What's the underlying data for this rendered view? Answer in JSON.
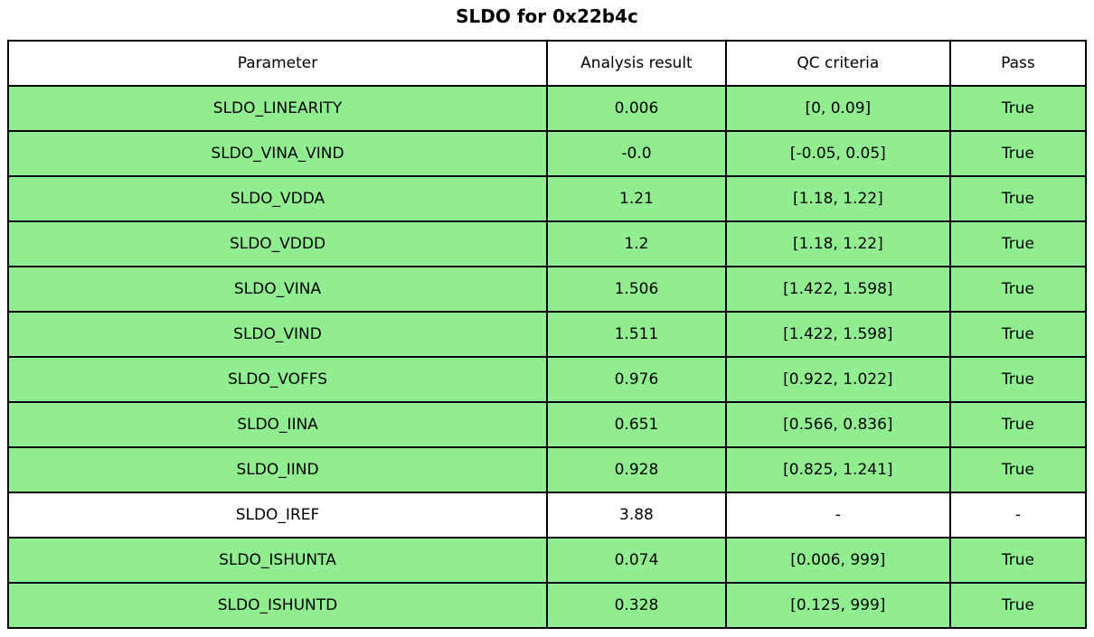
{
  "colors": {
    "pass_row_bg": "#90ee90",
    "neutral_row_bg": "#ffffff",
    "border": "#000000",
    "text": "#000000",
    "header_bg": "#ffffff"
  },
  "chart_data": {
    "type": "table",
    "title": "SLDO for 0x22b4c",
    "columns": [
      "Parameter",
      "Analysis result",
      "QC criteria",
      "Pass"
    ],
    "rows": [
      {
        "parameter": "SLDO_LINEARITY",
        "analysis_result": "0.006",
        "qc_criteria": "[0, 0.09]",
        "pass": "True",
        "highlight": true
      },
      {
        "parameter": "SLDO_VINA_VIND",
        "analysis_result": "-0.0",
        "qc_criteria": "[-0.05, 0.05]",
        "pass": "True",
        "highlight": true
      },
      {
        "parameter": "SLDO_VDDA",
        "analysis_result": "1.21",
        "qc_criteria": "[1.18, 1.22]",
        "pass": "True",
        "highlight": true
      },
      {
        "parameter": "SLDO_VDDD",
        "analysis_result": "1.2",
        "qc_criteria": "[1.18, 1.22]",
        "pass": "True",
        "highlight": true
      },
      {
        "parameter": "SLDO_VINA",
        "analysis_result": "1.506",
        "qc_criteria": "[1.422, 1.598]",
        "pass": "True",
        "highlight": true
      },
      {
        "parameter": "SLDO_VIND",
        "analysis_result": "1.511",
        "qc_criteria": "[1.422, 1.598]",
        "pass": "True",
        "highlight": true
      },
      {
        "parameter": "SLDO_VOFFS",
        "analysis_result": "0.976",
        "qc_criteria": "[0.922, 1.022]",
        "pass": "True",
        "highlight": true
      },
      {
        "parameter": "SLDO_IINA",
        "analysis_result": "0.651",
        "qc_criteria": "[0.566, 0.836]",
        "pass": "True",
        "highlight": true
      },
      {
        "parameter": "SLDO_IIND",
        "analysis_result": "0.928",
        "qc_criteria": "[0.825, 1.241]",
        "pass": "True",
        "highlight": true
      },
      {
        "parameter": "SLDO_IREF",
        "analysis_result": "3.88",
        "qc_criteria": "-",
        "pass": "-",
        "highlight": false
      },
      {
        "parameter": "SLDO_ISHUNTA",
        "analysis_result": "0.074",
        "qc_criteria": "[0.006, 999]",
        "pass": "True",
        "highlight": true
      },
      {
        "parameter": "SLDO_ISHUNTD",
        "analysis_result": "0.328",
        "qc_criteria": "[0.125, 999]",
        "pass": "True",
        "highlight": true
      }
    ]
  }
}
